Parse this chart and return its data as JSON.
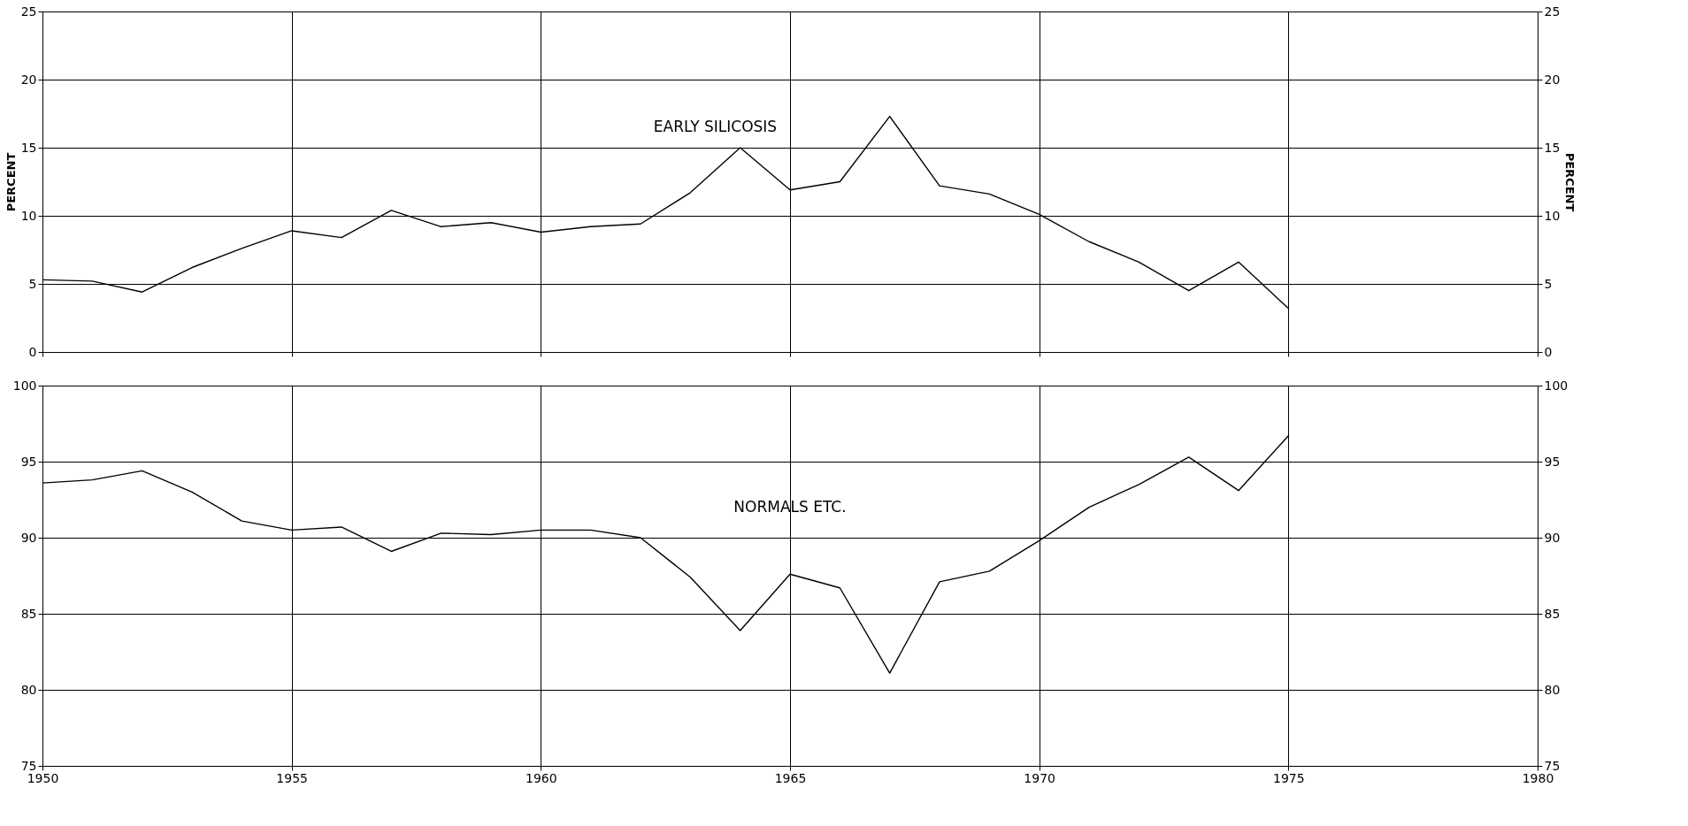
{
  "chart_data": [
    {
      "type": "line",
      "ylabel": "PERCENT",
      "y2label": "PERCENT",
      "x": [
        1950,
        1951,
        1952,
        1953,
        1954,
        1955,
        1956,
        1957,
        1958,
        1959,
        1960,
        1961,
        1962,
        1963,
        1964,
        1965,
        1966,
        1967,
        1968,
        1969,
        1970,
        1971,
        1972,
        1973,
        1974,
        1975
      ],
      "series": [
        {
          "name": "EARLY SILICOSIS",
          "color": "#000000",
          "values": [
            5.3,
            5.2,
            4.4,
            6.2,
            7.6,
            8.9,
            8.4,
            10.4,
            9.2,
            9.5,
            8.8,
            9.2,
            9.4,
            11.7,
            15.0,
            11.9,
            12.5,
            17.3,
            12.2,
            11.6,
            10.1,
            8.1,
            6.6,
            4.5,
            6.6,
            3.2
          ]
        }
      ],
      "xlim": [
        1950,
        1980
      ],
      "xticks": [
        1950,
        1955,
        1960,
        1965,
        1970,
        1975,
        1980
      ],
      "ylim": [
        0,
        25
      ],
      "yticks": [
        0,
        5,
        10,
        15,
        20,
        25
      ],
      "y2lim": [
        0,
        25
      ],
      "y2ticks": [
        0,
        5,
        10,
        15,
        20,
        25
      ],
      "grid": true,
      "tick_labels": "y"
    },
    {
      "type": "line",
      "x": [
        1950,
        1951,
        1952,
        1953,
        1954,
        1955,
        1956,
        1957,
        1958,
        1959,
        1960,
        1961,
        1962,
        1963,
        1964,
        1965,
        1966,
        1967,
        1968,
        1969,
        1970,
        1971,
        1972,
        1973,
        1974,
        1975
      ],
      "series": [
        {
          "name": "NORMALS ETC.",
          "color": "#000000",
          "values": [
            93.6,
            93.8,
            94.4,
            93.0,
            91.1,
            90.5,
            90.7,
            89.1,
            90.3,
            90.2,
            90.5,
            90.5,
            90.0,
            87.4,
            83.9,
            87.6,
            86.7,
            81.1,
            87.1,
            87.8,
            89.8,
            92.0,
            93.5,
            95.3,
            93.1,
            96.7
          ]
        }
      ],
      "xlim": [
        1950,
        1980
      ],
      "xticks": [
        1950,
        1955,
        1960,
        1965,
        1970,
        1975,
        1980
      ],
      "ylim": [
        75,
        100
      ],
      "yticks": [
        75,
        80,
        85,
        90,
        95,
        100
      ],
      "y2lim": [
        75,
        100
      ],
      "y2ticks": [
        75,
        80,
        85,
        90,
        95,
        100
      ],
      "grid": true
    }
  ]
}
